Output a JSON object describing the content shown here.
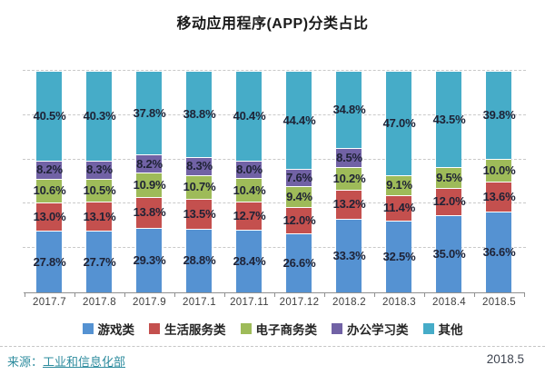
{
  "title": "移动应用程序(APP)分类占比",
  "chart_data": {
    "type": "bar",
    "stacked": true,
    "unit": "%",
    "title": "移动应用程序(APP)分类占比",
    "categories": [
      "2017.7",
      "2017.8",
      "2017.9",
      "2017.1",
      "2017.11",
      "2017.12",
      "2018.2",
      "2018.3",
      "2018.4",
      "2018.5"
    ],
    "series": [
      {
        "name": "游戏类",
        "color": "#5592D2",
        "values": [
          27.8,
          27.7,
          29.3,
          28.8,
          28.4,
          26.6,
          33.3,
          32.5,
          35.0,
          36.6
        ]
      },
      {
        "name": "生活服务类",
        "color": "#C4504E",
        "values": [
          13.0,
          13.1,
          13.8,
          13.5,
          12.7,
          12.0,
          13.2,
          11.4,
          12.0,
          13.6
        ]
      },
      {
        "name": "电子商务类",
        "color": "#9EBB59",
        "values": [
          10.6,
          10.5,
          10.9,
          10.7,
          10.4,
          9.4,
          10.2,
          9.1,
          9.5,
          10.0
        ]
      },
      {
        "name": "办公学习类",
        "color": "#7162A5",
        "values": [
          8.2,
          8.3,
          8.2,
          8.3,
          8.0,
          7.6,
          8.5,
          null,
          null,
          null
        ]
      },
      {
        "name": "其他",
        "color": "#46ACC8",
        "values": [
          40.5,
          40.3,
          37.8,
          38.8,
          40.4,
          44.4,
          34.8,
          47.0,
          43.5,
          39.8
        ]
      }
    ],
    "ylim": [
      0,
      100
    ],
    "gridlines_percent": [
      20,
      40,
      60,
      80,
      100
    ],
    "grid_style": "dashed horizontal",
    "legend_position": "bottom",
    "value_label_format": "one_decimal_percent"
  },
  "footer": {
    "source_prefix": "来源：",
    "source_name": "工业和信息化部",
    "date": "2018.5"
  }
}
